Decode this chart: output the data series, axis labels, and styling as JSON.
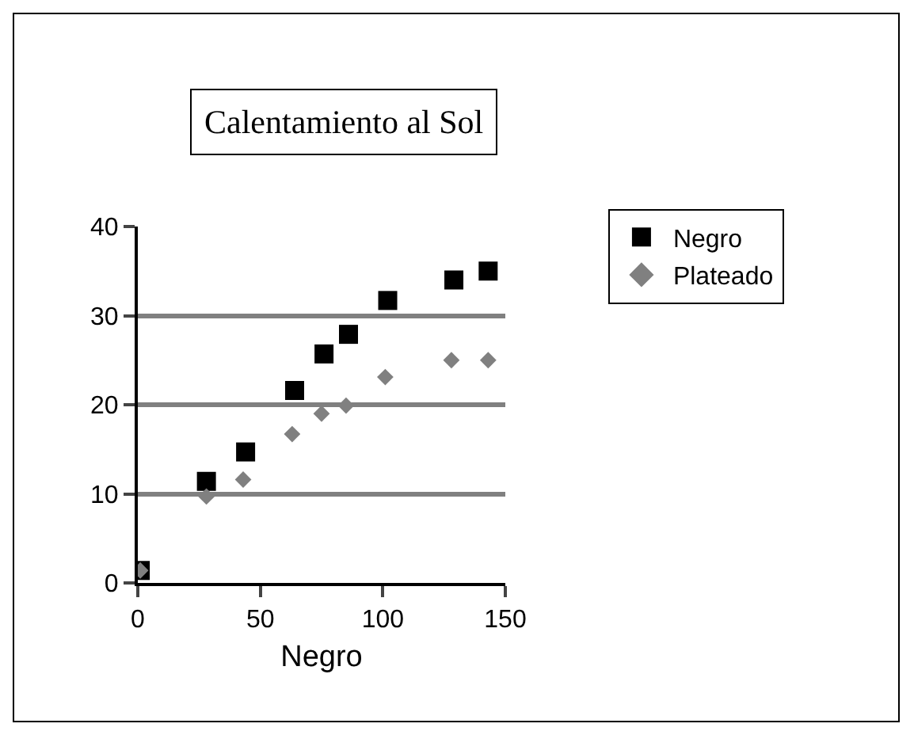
{
  "chart_data": {
    "type": "scatter",
    "title": "Calentamiento al Sol",
    "xlabel": "Negro",
    "xlim": [
      0,
      150
    ],
    "xticks": [
      0,
      50,
      100,
      150
    ],
    "ylim": [
      0,
      40
    ],
    "yticks": [
      0,
      10,
      20,
      30,
      40
    ],
    "grid": "y",
    "legend": "right",
    "series": [
      {
        "name": "Negro",
        "color": "#000000",
        "marker": "square",
        "x": [
          1,
          28,
          44,
          64,
          76,
          86,
          102,
          129,
          143
        ],
        "values": [
          1.4,
          11.4,
          14.7,
          21.6,
          25.7,
          27.9,
          31.7,
          34.0,
          35.0
        ]
      },
      {
        "name": "Plateado",
        "color": "#808080",
        "marker": "diamond",
        "x": [
          1,
          28,
          43,
          63,
          75,
          85,
          101,
          128,
          143
        ],
        "values": [
          1.4,
          9.7,
          11.6,
          16.7,
          19.0,
          19.9,
          23.1,
          25.0,
          25.0
        ]
      }
    ]
  }
}
